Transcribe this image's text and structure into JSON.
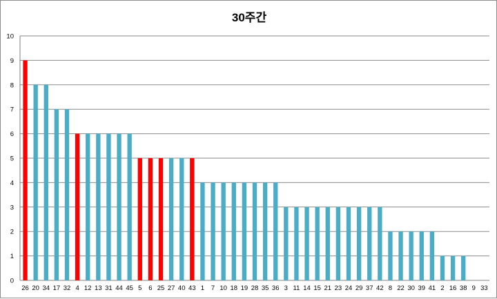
{
  "chart_data": {
    "type": "bar",
    "title": "30주간",
    "xlabel": "",
    "ylabel": "",
    "ylim": [
      0,
      10
    ],
    "yticks": [
      0,
      1,
      2,
      3,
      4,
      5,
      6,
      7,
      8,
      9,
      10
    ],
    "grid": true,
    "legend": "none",
    "colors": {
      "default": "#4bacc6",
      "highlight": "#ff0000"
    },
    "categories": [
      "26",
      "20",
      "34",
      "17",
      "32",
      "4",
      "12",
      "13",
      "31",
      "44",
      "45",
      "5",
      "6",
      "25",
      "27",
      "40",
      "43",
      "1",
      "7",
      "10",
      "18",
      "19",
      "28",
      "35",
      "36",
      "3",
      "11",
      "14",
      "15",
      "21",
      "23",
      "24",
      "29",
      "37",
      "42",
      "8",
      "22",
      "30",
      "39",
      "41",
      "2",
      "16",
      "38",
      "9",
      "33"
    ],
    "values": [
      9,
      8,
      8,
      7,
      7,
      6,
      6,
      6,
      6,
      6,
      6,
      5,
      5,
      5,
      5,
      5,
      5,
      4,
      4,
      4,
      4,
      4,
      4,
      4,
      4,
      3,
      3,
      3,
      3,
      3,
      3,
      3,
      3,
      3,
      3,
      2,
      2,
      2,
      2,
      2,
      1,
      1,
      1,
      0,
      0
    ],
    "highlighted": [
      "26",
      "4",
      "5",
      "6",
      "25",
      "43"
    ]
  }
}
